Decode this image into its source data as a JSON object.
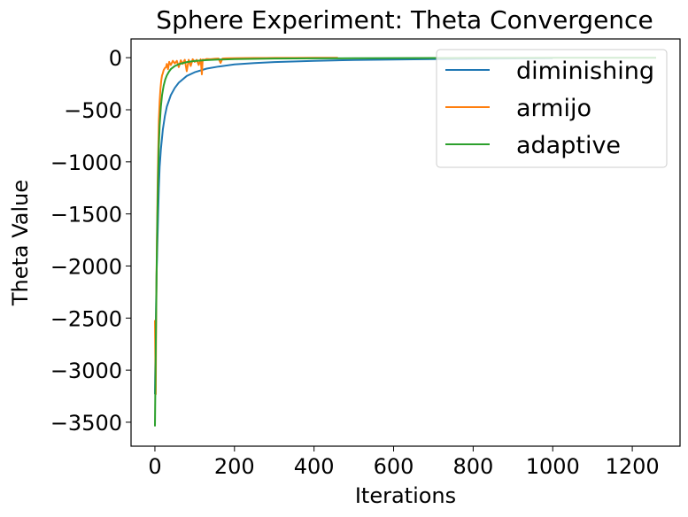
{
  "chart_data": {
    "type": "line",
    "title": "Sphere Experiment: Theta Convergence",
    "xlabel": "Iterations",
    "ylabel": "Theta Value",
    "xlim": [
      -60,
      1320
    ],
    "ylim": [
      -3730,
      180
    ],
    "xticks": [
      0,
      200,
      400,
      600,
      800,
      1000,
      1200
    ],
    "xtick_labels": [
      "0",
      "200",
      "400",
      "600",
      "800",
      "1000",
      "1200"
    ],
    "yticks": [
      0,
      -500,
      -1000,
      -1500,
      -2000,
      -2500,
      -3000,
      -3500
    ],
    "ytick_labels": [
      "0",
      "−500",
      "−1000",
      "−1500",
      "−2000",
      "−2500",
      "−3000",
      "−3500"
    ],
    "grid": false,
    "legend_position": "top-right",
    "series": [
      {
        "name": "diminishing",
        "color": "#1f77b4",
        "x": [
          0,
          2,
          4,
          6,
          8,
          10,
          12,
          15,
          20,
          25,
          30,
          40,
          50,
          60,
          80,
          100,
          130,
          160,
          200,
          250,
          300,
          400,
          500,
          600,
          700,
          800,
          900,
          1000
        ],
        "y": [
          -3230,
          -2600,
          -2100,
          -1800,
          -1500,
          -1250,
          -1050,
          -880,
          -690,
          -560,
          -470,
          -360,
          -290,
          -240,
          -175,
          -140,
          -105,
          -85,
          -65,
          -52,
          -42,
          -30,
          -22,
          -17,
          -13,
          -10,
          -7,
          -5
        ]
      },
      {
        "name": "armijo",
        "color": "#ff7f0e",
        "x": [
          0,
          1,
          2,
          3,
          4,
          5,
          6,
          7,
          8,
          9,
          10,
          12,
          14,
          16,
          18,
          20,
          22,
          25,
          28,
          30,
          33,
          36,
          40,
          45,
          50,
          55,
          60,
          65,
          70,
          75,
          80,
          85,
          90,
          95,
          100,
          105,
          110,
          115,
          118,
          120,
          125,
          130,
          140,
          150,
          160,
          165,
          170,
          180,
          200,
          220,
          250,
          280,
          300,
          350,
          400,
          460
        ],
        "y": [
          -2520,
          -2850,
          -3230,
          -2600,
          -2100,
          -1750,
          -1450,
          -1180,
          -950,
          -780,
          -600,
          -420,
          -300,
          -220,
          -170,
          -150,
          -120,
          -100,
          -90,
          -60,
          -110,
          -40,
          -70,
          -30,
          -55,
          -30,
          -90,
          -25,
          -60,
          -20,
          -130,
          -20,
          -80,
          -15,
          -40,
          -20,
          -70,
          -15,
          -160,
          -18,
          -20,
          -12,
          -15,
          -10,
          -8,
          -50,
          -8,
          -6,
          -5,
          -4,
          -3,
          -3,
          -2,
          -2,
          -1,
          -1
        ]
      },
      {
        "name": "adaptive",
        "color": "#2ca02c",
        "x": [
          0,
          2,
          4,
          6,
          8,
          10,
          12,
          15,
          18,
          22,
          26,
          30,
          35,
          40,
          50,
          60,
          80,
          100,
          130,
          160,
          200,
          260,
          300,
          400,
          500,
          600,
          700,
          800,
          900,
          1000,
          1100,
          1200,
          1260
        ],
        "y": [
          -3540,
          -2800,
          -2100,
          -1550,
          -1150,
          -850,
          -650,
          -470,
          -360,
          -270,
          -210,
          -170,
          -135,
          -110,
          -80,
          -62,
          -42,
          -32,
          -23,
          -18,
          -14,
          -10,
          -8,
          -6,
          -5,
          -4,
          -3,
          -2,
          -2,
          -1,
          -1,
          -1,
          -1
        ]
      }
    ]
  }
}
